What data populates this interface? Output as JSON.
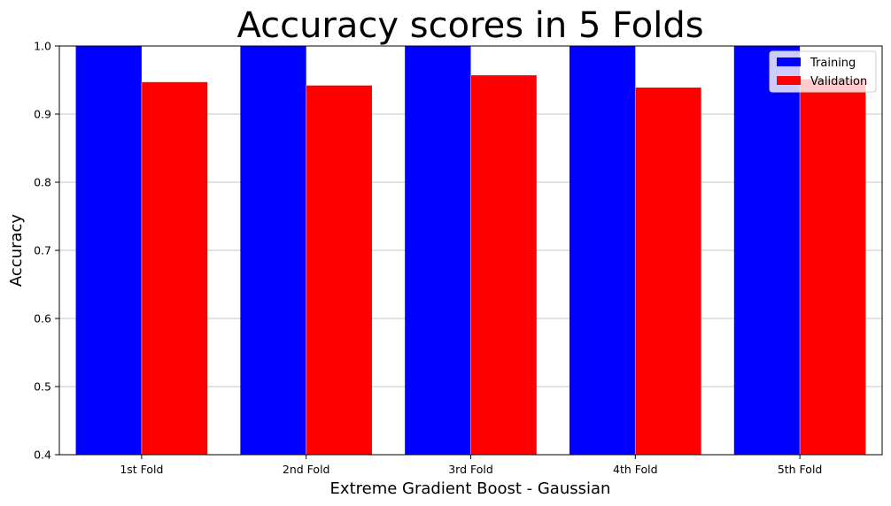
{
  "chart_data": {
    "type": "bar",
    "title": "Accuracy scores in 5 Folds",
    "xlabel": "Extreme Gradient Boost - Gaussian",
    "ylabel": "Accuracy",
    "categories": [
      "1st Fold",
      "2nd Fold",
      "3rd Fold",
      "4th Fold",
      "5th Fold"
    ],
    "series": [
      {
        "name": "Training",
        "color": "#0000ff",
        "values": [
          1.0,
          1.0,
          1.0,
          1.0,
          1.0
        ]
      },
      {
        "name": "Validation",
        "color": "#ff0000",
        "values": [
          0.947,
          0.942,
          0.957,
          0.939,
          0.951
        ]
      }
    ],
    "ylim": [
      0.4,
      1.0
    ],
    "yticks": [
      "0.4",
      "0.5",
      "0.6",
      "0.7",
      "0.8",
      "0.9",
      "1.0"
    ],
    "grid": "horizontal",
    "legend_position": "top-right"
  }
}
